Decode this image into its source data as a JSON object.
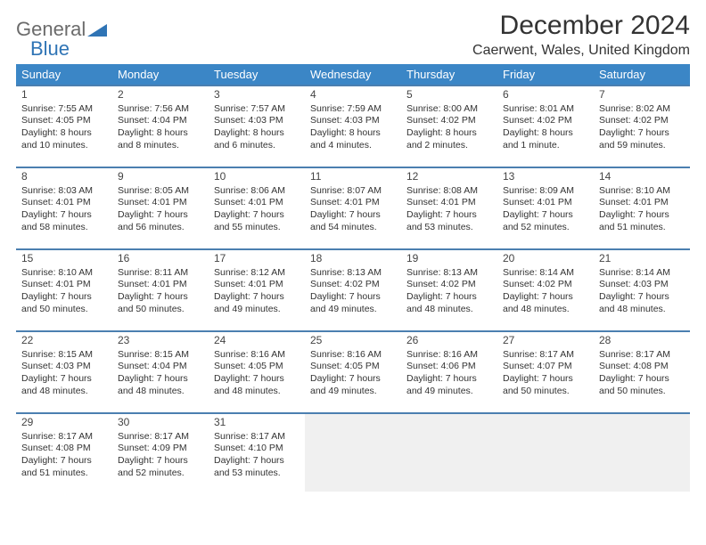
{
  "brand": {
    "part1": "General",
    "part2": "Blue"
  },
  "title": "December 2024",
  "location": "Caerwent, Wales, United Kingdom",
  "colors": {
    "header_bg": "#3b86c6",
    "header_text": "#ffffff",
    "cell_border": "#4b7fb0",
    "empty_bg": "#f0f0f0",
    "text": "#333333",
    "brand_gray": "#6b6b6b",
    "brand_blue": "#2f74b5"
  },
  "typography": {
    "title_fontsize": 30,
    "location_fontsize": 16,
    "day_header_fontsize": 13,
    "cell_fontsize": 10.5
  },
  "day_headers": [
    "Sunday",
    "Monday",
    "Tuesday",
    "Wednesday",
    "Thursday",
    "Friday",
    "Saturday"
  ],
  "weeks": [
    [
      {
        "n": "1",
        "sr": "Sunrise: 7:55 AM",
        "ss": "Sunset: 4:05 PM",
        "dl": "Daylight: 8 hours and 10 minutes."
      },
      {
        "n": "2",
        "sr": "Sunrise: 7:56 AM",
        "ss": "Sunset: 4:04 PM",
        "dl": "Daylight: 8 hours and 8 minutes."
      },
      {
        "n": "3",
        "sr": "Sunrise: 7:57 AM",
        "ss": "Sunset: 4:03 PM",
        "dl": "Daylight: 8 hours and 6 minutes."
      },
      {
        "n": "4",
        "sr": "Sunrise: 7:59 AM",
        "ss": "Sunset: 4:03 PM",
        "dl": "Daylight: 8 hours and 4 minutes."
      },
      {
        "n": "5",
        "sr": "Sunrise: 8:00 AM",
        "ss": "Sunset: 4:02 PM",
        "dl": "Daylight: 8 hours and 2 minutes."
      },
      {
        "n": "6",
        "sr": "Sunrise: 8:01 AM",
        "ss": "Sunset: 4:02 PM",
        "dl": "Daylight: 8 hours and 1 minute."
      },
      {
        "n": "7",
        "sr": "Sunrise: 8:02 AM",
        "ss": "Sunset: 4:02 PM",
        "dl": "Daylight: 7 hours and 59 minutes."
      }
    ],
    [
      {
        "n": "8",
        "sr": "Sunrise: 8:03 AM",
        "ss": "Sunset: 4:01 PM",
        "dl": "Daylight: 7 hours and 58 minutes."
      },
      {
        "n": "9",
        "sr": "Sunrise: 8:05 AM",
        "ss": "Sunset: 4:01 PM",
        "dl": "Daylight: 7 hours and 56 minutes."
      },
      {
        "n": "10",
        "sr": "Sunrise: 8:06 AM",
        "ss": "Sunset: 4:01 PM",
        "dl": "Daylight: 7 hours and 55 minutes."
      },
      {
        "n": "11",
        "sr": "Sunrise: 8:07 AM",
        "ss": "Sunset: 4:01 PM",
        "dl": "Daylight: 7 hours and 54 minutes."
      },
      {
        "n": "12",
        "sr": "Sunrise: 8:08 AM",
        "ss": "Sunset: 4:01 PM",
        "dl": "Daylight: 7 hours and 53 minutes."
      },
      {
        "n": "13",
        "sr": "Sunrise: 8:09 AM",
        "ss": "Sunset: 4:01 PM",
        "dl": "Daylight: 7 hours and 52 minutes."
      },
      {
        "n": "14",
        "sr": "Sunrise: 8:10 AM",
        "ss": "Sunset: 4:01 PM",
        "dl": "Daylight: 7 hours and 51 minutes."
      }
    ],
    [
      {
        "n": "15",
        "sr": "Sunrise: 8:10 AM",
        "ss": "Sunset: 4:01 PM",
        "dl": "Daylight: 7 hours and 50 minutes."
      },
      {
        "n": "16",
        "sr": "Sunrise: 8:11 AM",
        "ss": "Sunset: 4:01 PM",
        "dl": "Daylight: 7 hours and 50 minutes."
      },
      {
        "n": "17",
        "sr": "Sunrise: 8:12 AM",
        "ss": "Sunset: 4:01 PM",
        "dl": "Daylight: 7 hours and 49 minutes."
      },
      {
        "n": "18",
        "sr": "Sunrise: 8:13 AM",
        "ss": "Sunset: 4:02 PM",
        "dl": "Daylight: 7 hours and 49 minutes."
      },
      {
        "n": "19",
        "sr": "Sunrise: 8:13 AM",
        "ss": "Sunset: 4:02 PM",
        "dl": "Daylight: 7 hours and 48 minutes."
      },
      {
        "n": "20",
        "sr": "Sunrise: 8:14 AM",
        "ss": "Sunset: 4:02 PM",
        "dl": "Daylight: 7 hours and 48 minutes."
      },
      {
        "n": "21",
        "sr": "Sunrise: 8:14 AM",
        "ss": "Sunset: 4:03 PM",
        "dl": "Daylight: 7 hours and 48 minutes."
      }
    ],
    [
      {
        "n": "22",
        "sr": "Sunrise: 8:15 AM",
        "ss": "Sunset: 4:03 PM",
        "dl": "Daylight: 7 hours and 48 minutes."
      },
      {
        "n": "23",
        "sr": "Sunrise: 8:15 AM",
        "ss": "Sunset: 4:04 PM",
        "dl": "Daylight: 7 hours and 48 minutes."
      },
      {
        "n": "24",
        "sr": "Sunrise: 8:16 AM",
        "ss": "Sunset: 4:05 PM",
        "dl": "Daylight: 7 hours and 48 minutes."
      },
      {
        "n": "25",
        "sr": "Sunrise: 8:16 AM",
        "ss": "Sunset: 4:05 PM",
        "dl": "Daylight: 7 hours and 49 minutes."
      },
      {
        "n": "26",
        "sr": "Sunrise: 8:16 AM",
        "ss": "Sunset: 4:06 PM",
        "dl": "Daylight: 7 hours and 49 minutes."
      },
      {
        "n": "27",
        "sr": "Sunrise: 8:17 AM",
        "ss": "Sunset: 4:07 PM",
        "dl": "Daylight: 7 hours and 50 minutes."
      },
      {
        "n": "28",
        "sr": "Sunrise: 8:17 AM",
        "ss": "Sunset: 4:08 PM",
        "dl": "Daylight: 7 hours and 50 minutes."
      }
    ],
    [
      {
        "n": "29",
        "sr": "Sunrise: 8:17 AM",
        "ss": "Sunset: 4:08 PM",
        "dl": "Daylight: 7 hours and 51 minutes."
      },
      {
        "n": "30",
        "sr": "Sunrise: 8:17 AM",
        "ss": "Sunset: 4:09 PM",
        "dl": "Daylight: 7 hours and 52 minutes."
      },
      {
        "n": "31",
        "sr": "Sunrise: 8:17 AM",
        "ss": "Sunset: 4:10 PM",
        "dl": "Daylight: 7 hours and 53 minutes."
      },
      null,
      null,
      null,
      null
    ]
  ]
}
